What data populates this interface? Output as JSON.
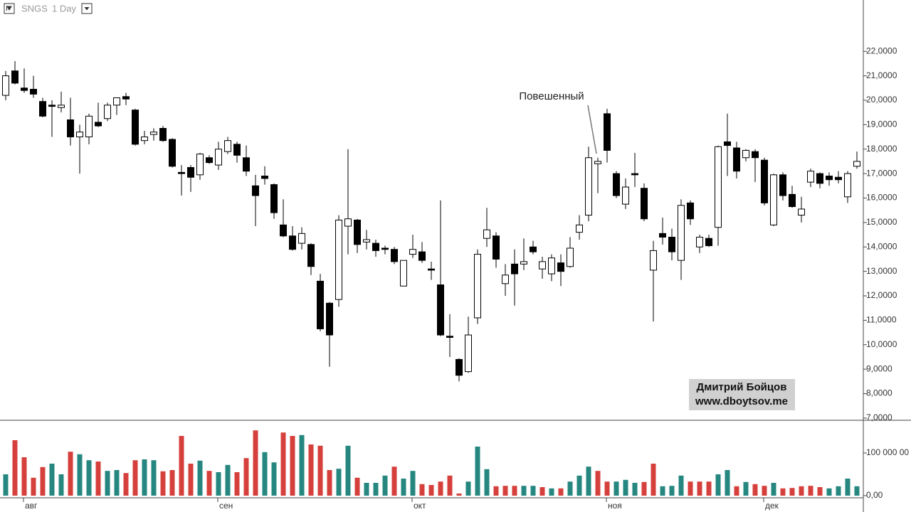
{
  "chart_data": [
    {
      "type": "candlestick",
      "title": "SNGS",
      "subtitle": "1 Day",
      "annotation": "Повешенный",
      "watermark": [
        "Дмитрий Бойцов",
        "www.dboytsov.me"
      ],
      "categories": [
        null,
        null,
        "авг",
        null,
        null,
        null,
        null,
        null,
        null,
        null,
        null,
        null,
        null,
        null,
        null,
        null,
        null,
        null,
        null,
        null,
        null,
        null,
        null,
        "сен",
        null,
        null,
        null,
        null,
        null,
        null,
        null,
        null,
        null,
        null,
        null,
        null,
        null,
        null,
        null,
        null,
        null,
        null,
        null,
        null,
        "окт",
        null,
        null,
        null,
        null,
        null,
        null,
        null,
        null,
        null,
        null,
        null,
        null,
        null,
        null,
        null,
        null,
        null,
        null,
        null,
        null,
        "ноя",
        null,
        null,
        null,
        null,
        null,
        null,
        null,
        null,
        null,
        null,
        null,
        null,
        null,
        null,
        null,
        null,
        "дек",
        null,
        null,
        null,
        null,
        null,
        null,
        null,
        null,
        null,
        null
      ],
      "up_color": "#ffffff",
      "down_color": "#000000",
      "open": [
        20.2,
        21.2,
        20.5,
        20.45,
        19.95,
        19.8,
        19.7,
        19.2,
        18.5,
        18.5,
        19.1,
        19.25,
        19.8,
        20.15,
        19.6,
        18.35,
        18.6,
        18.85,
        18.4,
        17.05,
        17.25,
        16.95,
        17.65,
        17.35,
        17.9,
        18.2,
        17.65,
        16.5,
        16.9,
        16.55,
        14.9,
        14.45,
        14.15,
        14.1,
        12.6,
        11.7,
        11.85,
        14.85,
        15.1,
        14.2,
        14.15,
        13.95,
        13.9,
        12.4,
        13.7,
        13.8,
        13.1,
        12.45,
        10.35,
        9.4,
        8.9,
        11.1,
        14.35,
        14.45,
        12.5,
        13.3,
        13.3,
        14.0,
        13.1,
        12.9,
        13.35,
        13.2,
        14.6,
        15.3,
        17.4,
        19.45,
        17.0,
        15.75,
        17.0,
        16.4,
        13.05,
        14.55,
        14.4,
        13.45,
        15.8,
        14.0,
        14.35,
        14.8,
        18.3,
        18.05,
        17.65,
        17.9,
        17.55,
        14.9,
        16.95,
        16.15,
        15.3,
        16.65,
        17.0,
        16.9,
        16.85,
        16.05,
        17.3
      ],
      "high": [
        21.2,
        21.6,
        21.3,
        21.0,
        20.1,
        20.0,
        20.35,
        20.1,
        19.0,
        19.45,
        19.9,
        19.9,
        20.1,
        20.3,
        19.65,
        18.75,
        18.85,
        18.95,
        18.45,
        17.35,
        17.35,
        17.85,
        17.75,
        18.3,
        18.5,
        18.3,
        18.15,
        16.95,
        17.3,
        16.6,
        15.95,
        14.85,
        14.8,
        14.15,
        12.9,
        11.75,
        15.3,
        18.0,
        15.15,
        14.7,
        14.3,
        14.05,
        14.0,
        13.45,
        14.5,
        14.2,
        13.4,
        15.9,
        11.25,
        9.45,
        11.15,
        13.9,
        15.6,
        14.6,
        13.3,
        13.9,
        14.35,
        14.25,
        13.6,
        13.7,
        13.7,
        14.4,
        15.3,
        18.1,
        17.65,
        19.65,
        17.1,
        16.8,
        17.85,
        16.6,
        14.25,
        15.2,
        14.75,
        15.95,
        15.9,
        14.5,
        14.5,
        18.15,
        19.45,
        18.3,
        18.0,
        18.0,
        17.65,
        17.0,
        17.05,
        16.5,
        16.05,
        17.2,
        17.05,
        17.05,
        17.1,
        17.1,
        17.9
      ],
      "low": [
        20.0,
        20.65,
        20.3,
        20.1,
        19.3,
        18.5,
        19.5,
        18.15,
        17.0,
        18.2,
        18.9,
        19.15,
        19.4,
        19.8,
        18.15,
        18.2,
        18.35,
        18.3,
        17.25,
        16.1,
        16.25,
        16.75,
        17.4,
        17.15,
        17.8,
        17.45,
        16.9,
        14.85,
        16.55,
        15.15,
        14.4,
        13.85,
        13.9,
        12.85,
        10.55,
        9.1,
        11.55,
        13.7,
        13.75,
        13.9,
        13.6,
        13.7,
        13.3,
        12.4,
        13.55,
        13.35,
        12.65,
        10.35,
        9.5,
        8.5,
        8.85,
        10.85,
        14.0,
        13.15,
        12.0,
        11.6,
        13.05,
        13.7,
        12.7,
        12.6,
        12.4,
        13.15,
        14.3,
        15.05,
        16.2,
        17.45,
        16.0,
        15.55,
        16.45,
        15.05,
        10.95,
        14.1,
        13.45,
        12.65,
        14.9,
        13.75,
        14.0,
        14.05,
        16.9,
        16.8,
        17.5,
        16.65,
        15.7,
        14.85,
        15.9,
        15.6,
        15.0,
        16.45,
        16.4,
        16.5,
        16.6,
        15.8,
        17.2
      ],
      "close": [
        21.0,
        20.7,
        20.4,
        20.25,
        19.35,
        19.75,
        19.8,
        18.5,
        18.7,
        19.35,
        18.95,
        19.8,
        20.1,
        20.05,
        18.2,
        18.5,
        18.7,
        18.35,
        17.3,
        17.0,
        16.85,
        17.8,
        17.45,
        18.0,
        18.35,
        17.75,
        17.1,
        16.1,
        16.8,
        15.4,
        14.45,
        13.9,
        14.55,
        13.2,
        10.65,
        10.4,
        15.1,
        15.15,
        14.1,
        14.3,
        13.85,
        13.9,
        13.4,
        13.45,
        13.9,
        13.45,
        13.05,
        10.4,
        10.3,
        8.75,
        10.4,
        13.7,
        14.7,
        13.5,
        12.85,
        12.9,
        13.4,
        13.8,
        13.4,
        13.55,
        13.0,
        13.95,
        14.9,
        17.65,
        17.5,
        17.95,
        16.1,
        16.45,
        16.95,
        15.15,
        13.85,
        14.4,
        13.8,
        15.7,
        15.15,
        14.4,
        14.05,
        18.1,
        18.15,
        17.1,
        17.95,
        17.65,
        15.8,
        16.95,
        16.1,
        15.65,
        15.55,
        17.1,
        16.6,
        16.75,
        16.75,
        17.0,
        17.5
      ],
      "ylim": [
        6.94,
        24.1
      ],
      "yticks": [
        {
          "value": 7,
          "label": "7,0000"
        },
        {
          "value": 8,
          "label": "8,0000"
        },
        {
          "value": 9,
          "label": "9,0000"
        },
        {
          "value": 10,
          "label": "10,0000"
        },
        {
          "value": 11,
          "label": "11,0000"
        },
        {
          "value": 12,
          "label": "12,0000"
        },
        {
          "value": 13,
          "label": "13,0000"
        },
        {
          "value": 14,
          "label": "14,0000"
        },
        {
          "value": 15,
          "label": "15,0000"
        },
        {
          "value": 16,
          "label": "16,0000"
        },
        {
          "value": 17,
          "label": "17,0000"
        },
        {
          "value": 18,
          "label": "18,0000"
        },
        {
          "value": 19,
          "label": "19,0000"
        },
        {
          "value": 20,
          "label": "20,0000"
        },
        {
          "value": 21,
          "label": "21,0000"
        },
        {
          "value": 22,
          "label": "22,0000"
        }
      ]
    },
    {
      "type": "bar",
      "values": [
        50000000,
        130000000,
        90000000,
        42000000,
        67000000,
        75000000,
        50000000,
        103000000,
        97000000,
        83000000,
        80000000,
        58000000,
        60000000,
        53000000,
        83000000,
        85000000,
        83000000,
        57000000,
        60000000,
        140000000,
        75000000,
        82000000,
        58000000,
        55000000,
        72000000,
        55000000,
        88000000,
        153000000,
        102000000,
        78000000,
        148000000,
        140000000,
        142000000,
        120000000,
        117000000,
        60000000,
        63000000,
        117000000,
        42000000,
        30000000,
        30000000,
        47000000,
        68000000,
        40000000,
        58000000,
        27000000,
        25000000,
        33000000,
        47000000,
        5000000,
        33000000,
        115000000,
        62000000,
        22000000,
        23000000,
        23000000,
        23000000,
        23000000,
        20000000,
        17000000,
        17000000,
        33000000,
        47000000,
        68000000,
        58000000,
        33000000,
        33000000,
        37000000,
        30000000,
        32000000,
        75000000,
        22000000,
        23000000,
        47000000,
        33000000,
        33000000,
        33000000,
        50000000,
        60000000,
        22000000,
        32000000,
        27000000,
        23000000,
        30000000,
        17000000,
        18000000,
        22000000,
        23000000,
        20000000,
        17000000,
        22000000,
        40000000,
        22000000
      ],
      "colors": [
        "#25877f",
        "#d6403c",
        "#d6403c",
        "#d6403c",
        "#d6403c",
        "#25877f",
        "#25877f",
        "#d6403c",
        "#25877f",
        "#25877f",
        "#d6403c",
        "#25877f",
        "#25877f",
        "#d6403c",
        "#d6403c",
        "#25877f",
        "#25877f",
        "#d6403c",
        "#d6403c",
        "#d6403c",
        "#d6403c",
        "#25877f",
        "#d6403c",
        "#25877f",
        "#25877f",
        "#d6403c",
        "#d6403c",
        "#d6403c",
        "#25877f",
        "#25877f",
        "#d6403c",
        "#d6403c",
        "#25877f",
        "#d6403c",
        "#d6403c",
        "#d6403c",
        "#25877f",
        "#25877f",
        "#d6403c",
        "#25877f",
        "#25877f",
        "#25877f",
        "#d6403c",
        "#25877f",
        "#25877f",
        "#d6403c",
        "#d6403c",
        "#d6403c",
        "#d6403c",
        "#d6403c",
        "#25877f",
        "#25877f",
        "#25877f",
        "#d6403c",
        "#d6403c",
        "#d6403c",
        "#25877f",
        "#25877f",
        "#d6403c",
        "#25877f",
        "#d6403c",
        "#25877f",
        "#25877f",
        "#25877f",
        "#d6403c",
        "#d6403c",
        "#25877f",
        "#25877f",
        "#25877f",
        "#d6403c",
        "#d6403c",
        "#25877f",
        "#25877f",
        "#25877f",
        "#d6403c",
        "#d6403c",
        "#d6403c",
        "#25877f",
        "#25877f",
        "#d6403c",
        "#25877f",
        "#d6403c",
        "#d6403c",
        "#25877f",
        "#d6403c",
        "#d6403c",
        "#d6403c",
        "#d6403c",
        "#d6403c",
        "#25877f",
        "#25877f",
        "#25877f",
        "#25877f"
      ],
      "ylim": [
        0,
        175000000
      ],
      "yticks": [
        {
          "value": 0,
          "label": "0,00"
        },
        {
          "value": 100000000,
          "label": "100 000 00"
        }
      ]
    }
  ]
}
